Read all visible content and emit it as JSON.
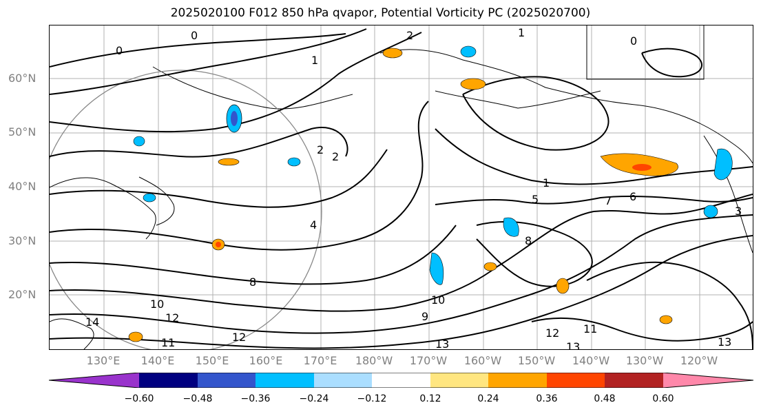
{
  "title": "2025020100 F012 850 hPa qvapor, Potential Vorticity PC (2025020700)",
  "lat_labels": [
    "60°N",
    "50°N",
    "40°N",
    "30°N",
    "20°N"
  ],
  "lon_labels": [
    "130°E",
    "140°E",
    "150°E",
    "160°E",
    "170°E",
    "180°W",
    "170°W",
    "160°W",
    "150°W",
    "140°W",
    "130°W",
    "120°W"
  ],
  "contour_labels": [
    "0",
    "0",
    "1",
    "2",
    "1",
    "0",
    "2",
    "2",
    "1",
    "5",
    "7",
    "6",
    "4",
    "8",
    "8",
    "10",
    "12",
    "11",
    "12",
    "10",
    "13",
    "12",
    "13",
    "11",
    "13",
    "14",
    "3",
    "9"
  ],
  "colorbar": {
    "colors": [
      "#9933cc",
      "#000080",
      "#3355cc",
      "#00bfff",
      "#aadeff",
      "#ffffff",
      "#ffe680",
      "#ffa500",
      "#ff4500",
      "#b22222",
      "#ff88aa"
    ],
    "tick_labels": [
      "−0.60",
      "−0.48",
      "−0.36",
      "−0.24",
      "−0.12",
      "0.12",
      "0.24",
      "0.36",
      "0.48",
      "0.60"
    ]
  },
  "colors": {
    "contour": "#000000",
    "gridline": "#b0b0b0",
    "coastline": "#000000",
    "axis_label": "#808080",
    "circle": "#888888"
  }
}
